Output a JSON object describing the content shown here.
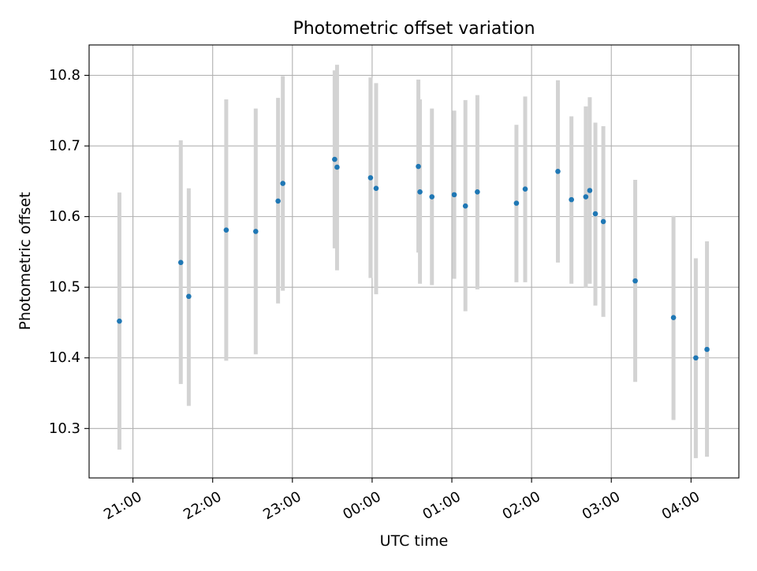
{
  "chart_data": {
    "type": "scatter",
    "title": "Photometric offset variation",
    "xlabel": "UTC time",
    "ylabel": "Photometric offset",
    "x_unit": "hours relative to 00:00 UTC",
    "xlim": [
      -3.55,
      4.6
    ],
    "ylim": [
      10.23,
      10.843
    ],
    "xticks": [
      {
        "value": -3,
        "label": "21:00"
      },
      {
        "value": -2,
        "label": "22:00"
      },
      {
        "value": -1,
        "label": "23:00"
      },
      {
        "value": 0,
        "label": "00:00"
      },
      {
        "value": 1,
        "label": "01:00"
      },
      {
        "value": 2,
        "label": "02:00"
      },
      {
        "value": 3,
        "label": "03:00"
      },
      {
        "value": 4,
        "label": "04:00"
      }
    ],
    "yticks": [
      {
        "value": 10.3,
        "label": "10.3"
      },
      {
        "value": 10.4,
        "label": "10.4"
      },
      {
        "value": 10.5,
        "label": "10.5"
      },
      {
        "value": 10.6,
        "label": "10.6"
      },
      {
        "value": 10.7,
        "label": "10.7"
      },
      {
        "value": 10.8,
        "label": "10.8"
      }
    ],
    "grid": true,
    "series": [
      {
        "name": "offset",
        "point_color": "#1f77b4",
        "errorbar_color": "#d3d3d3",
        "points": [
          {
            "x": -3.17,
            "y": 10.452,
            "lo": 10.27,
            "hi": 10.634
          },
          {
            "x": -2.4,
            "y": 10.535,
            "lo": 10.363,
            "hi": 10.708
          },
          {
            "x": -2.3,
            "y": 10.487,
            "lo": 10.332,
            "hi": 10.64
          },
          {
            "x": -1.83,
            "y": 10.581,
            "lo": 10.396,
            "hi": 10.766
          },
          {
            "x": -1.46,
            "y": 10.579,
            "lo": 10.405,
            "hi": 10.753
          },
          {
            "x": -1.18,
            "y": 10.622,
            "lo": 10.477,
            "hi": 10.768
          },
          {
            "x": -1.12,
            "y": 10.647,
            "lo": 10.495,
            "hi": 10.799
          },
          {
            "x": -0.47,
            "y": 10.681,
            "lo": 10.555,
            "hi": 10.807
          },
          {
            "x": -0.44,
            "y": 10.67,
            "lo": 10.524,
            "hi": 10.815
          },
          {
            "x": -0.02,
            "y": 10.655,
            "lo": 10.513,
            "hi": 10.797
          },
          {
            "x": 0.05,
            "y": 10.64,
            "lo": 10.49,
            "hi": 10.789
          },
          {
            "x": 0.58,
            "y": 10.671,
            "lo": 10.549,
            "hi": 10.794
          },
          {
            "x": 0.6,
            "y": 10.635,
            "lo": 10.505,
            "hi": 10.766
          },
          {
            "x": 0.75,
            "y": 10.628,
            "lo": 10.503,
            "hi": 10.753
          },
          {
            "x": 1.03,
            "y": 10.631,
            "lo": 10.512,
            "hi": 10.75
          },
          {
            "x": 1.17,
            "y": 10.615,
            "lo": 10.466,
            "hi": 10.765
          },
          {
            "x": 1.32,
            "y": 10.635,
            "lo": 10.497,
            "hi": 10.772
          },
          {
            "x": 1.81,
            "y": 10.619,
            "lo": 10.507,
            "hi": 10.73
          },
          {
            "x": 1.92,
            "y": 10.639,
            "lo": 10.507,
            "hi": 10.77
          },
          {
            "x": 2.33,
            "y": 10.664,
            "lo": 10.535,
            "hi": 10.793
          },
          {
            "x": 2.5,
            "y": 10.624,
            "lo": 10.505,
            "hi": 10.742
          },
          {
            "x": 2.68,
            "y": 10.628,
            "lo": 10.499,
            "hi": 10.756
          },
          {
            "x": 2.73,
            "y": 10.637,
            "lo": 10.505,
            "hi": 10.769
          },
          {
            "x": 2.8,
            "y": 10.604,
            "lo": 10.474,
            "hi": 10.733
          },
          {
            "x": 2.9,
            "y": 10.593,
            "lo": 10.458,
            "hi": 10.728
          },
          {
            "x": 3.3,
            "y": 10.509,
            "lo": 10.366,
            "hi": 10.652
          },
          {
            "x": 3.78,
            "y": 10.457,
            "lo": 10.312,
            "hi": 10.601
          },
          {
            "x": 4.06,
            "y": 10.4,
            "lo": 10.258,
            "hi": 10.541
          },
          {
            "x": 4.2,
            "y": 10.412,
            "lo": 10.26,
            "hi": 10.565
          }
        ]
      }
    ]
  }
}
